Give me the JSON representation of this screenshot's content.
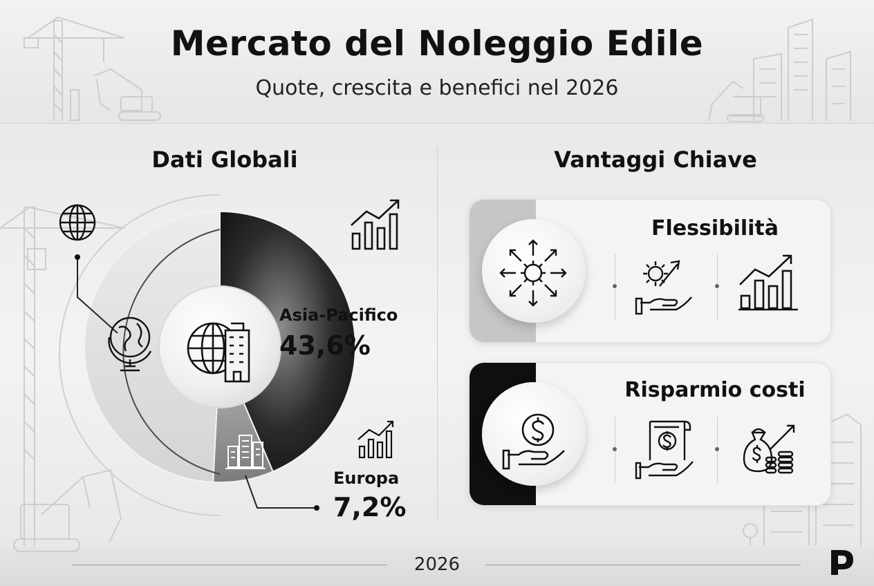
{
  "header": {
    "title": "Mercato del Noleggio Edile",
    "subtitle": "Quote, crescita e benefici nel 2026"
  },
  "left": {
    "section_title": "Dati Globali"
  },
  "right": {
    "section_title": "Vantaggi Chiave"
  },
  "chart_data": {
    "type": "pie",
    "labels": [
      "Asia-Pacifico",
      "Europa"
    ],
    "values": [
      43.6,
      7.2
    ],
    "value_labels": [
      "43,6%",
      "7,2%"
    ],
    "unit": "%",
    "note": "Rimanente porzione non etichettata",
    "colors": [
      "#1a1a1a",
      "#8a8a8a",
      "#d6d6d6"
    ]
  },
  "cards": [
    {
      "title": "Flessibilità",
      "strip_color": "#c4c4c4",
      "icons": [
        "expand-arrows-gear-icon",
        "gear-growth-hand-icon",
        "bar-growth-chart-icon"
      ]
    },
    {
      "title": "Risparmio costi",
      "strip_color": "#0f0f0f",
      "icons": [
        "dollar-hand-icon",
        "invoice-hand-icon",
        "money-bag-coins-icon"
      ]
    }
  ],
  "footer": {
    "year": "2026"
  },
  "colors": {
    "accent_dark": "#111111",
    "background": "#ececec"
  }
}
